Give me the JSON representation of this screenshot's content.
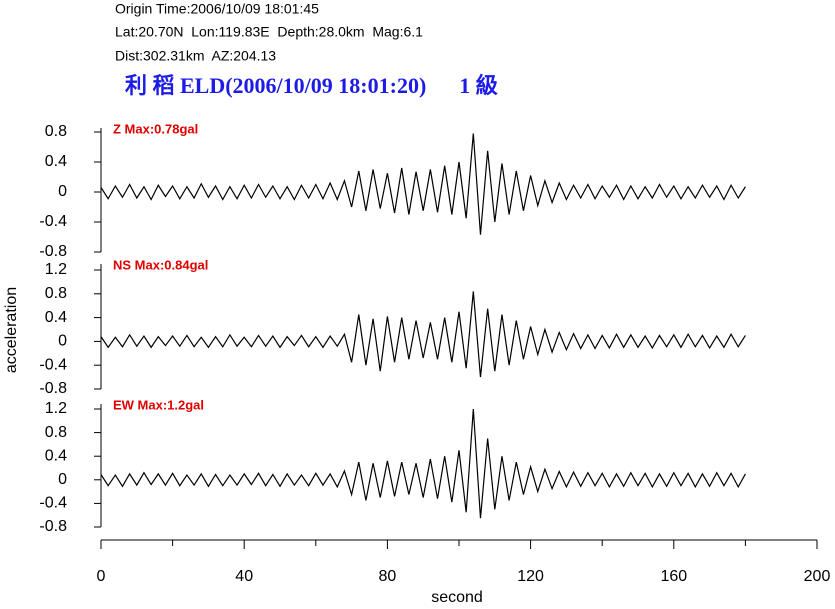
{
  "header": {
    "origin_time": "Origin Time:2006/10/09 18:01:45",
    "location": "Lat:20.70N  Lon:119.83E  Depth:28.0km  Mag:6.1",
    "distance": "Dist:302.31km  AZ:204.13",
    "title": "利 稻 ELD(2006/10/09 18:01:20)      1 級"
  },
  "chart_data": [
    {
      "type": "line",
      "label": "Z Max:0.78gal",
      "color": "#000000",
      "x": [
        0,
        2,
        4,
        6,
        8,
        10,
        12,
        14,
        16,
        18,
        20,
        22,
        24,
        26,
        28,
        30,
        32,
        34,
        36,
        38,
        40,
        42,
        44,
        46,
        48,
        50,
        52,
        54,
        56,
        58,
        60,
        62,
        64,
        66,
        68,
        70,
        72,
        74,
        76,
        78,
        80,
        82,
        84,
        86,
        88,
        90,
        92,
        94,
        96,
        98,
        100,
        102,
        104,
        106,
        108,
        110,
        112,
        114,
        116,
        118,
        120,
        122,
        124,
        126,
        128,
        130,
        132,
        134,
        136,
        138,
        140,
        142,
        144,
        146,
        148,
        150,
        152,
        154,
        156,
        158,
        160,
        162,
        164,
        166,
        168,
        170,
        172,
        174,
        176,
        178,
        180
      ],
      "values": [
        0.06,
        -0.09,
        0.08,
        -0.07,
        0.1,
        -0.08,
        0.07,
        -0.1,
        0.09,
        -0.06,
        0.08,
        -0.09,
        0.07,
        -0.08,
        0.11,
        -0.07,
        0.08,
        -0.1,
        0.07,
        -0.09,
        0.09,
        -0.08,
        0.1,
        -0.07,
        0.08,
        -0.09,
        0.07,
        -0.1,
        0.09,
        -0.08,
        0.1,
        -0.09,
        0.12,
        -0.1,
        0.15,
        -0.2,
        0.28,
        -0.25,
        0.3,
        -0.22,
        0.25,
        -0.28,
        0.32,
        -0.3,
        0.27,
        -0.25,
        0.3,
        -0.27,
        0.35,
        -0.3,
        0.4,
        -0.35,
        0.78,
        -0.57,
        0.55,
        -0.4,
        0.38,
        -0.3,
        0.28,
        -0.25,
        0.22,
        -0.18,
        0.15,
        -0.14,
        0.12,
        -0.1,
        0.09,
        -0.08,
        0.1,
        -0.09,
        0.08,
        -0.07,
        0.09,
        -0.1,
        0.08,
        -0.09,
        0.07,
        -0.08,
        0.1,
        -0.07,
        0.08,
        -0.09,
        0.07,
        -0.08,
        0.09,
        -0.07,
        0.08,
        -0.1,
        0.09,
        -0.08,
        0.07
      ],
      "xlim": [
        0,
        200
      ],
      "ylim": [
        -0.8,
        0.8
      ],
      "yticks": [
        -0.8,
        -0.4,
        0,
        0.4,
        0.8
      ]
    },
    {
      "type": "line",
      "label": "NS Max:0.84gal",
      "color": "#000000",
      "ylabel": "acceleration",
      "x": [
        0,
        2,
        4,
        6,
        8,
        10,
        12,
        14,
        16,
        18,
        20,
        22,
        24,
        26,
        28,
        30,
        32,
        34,
        36,
        38,
        40,
        42,
        44,
        46,
        48,
        50,
        52,
        54,
        56,
        58,
        60,
        62,
        64,
        66,
        68,
        70,
        72,
        74,
        76,
        78,
        80,
        82,
        84,
        86,
        88,
        90,
        92,
        94,
        96,
        98,
        100,
        102,
        104,
        106,
        108,
        110,
        112,
        114,
        116,
        118,
        120,
        122,
        124,
        126,
        128,
        130,
        132,
        134,
        136,
        138,
        140,
        142,
        144,
        146,
        148,
        150,
        152,
        154,
        156,
        158,
        160,
        162,
        164,
        166,
        168,
        170,
        172,
        174,
        176,
        178,
        180
      ],
      "values": [
        0.08,
        -0.1,
        0.07,
        -0.09,
        0.11,
        -0.08,
        0.09,
        -0.1,
        0.08,
        -0.07,
        0.09,
        -0.08,
        0.1,
        -0.09,
        0.07,
        -0.1,
        0.08,
        -0.09,
        0.11,
        -0.08,
        0.07,
        -0.09,
        0.1,
        -0.08,
        0.09,
        -0.1,
        0.08,
        -0.07,
        0.1,
        -0.09,
        0.08,
        -0.1,
        0.09,
        -0.08,
        0.12,
        -0.35,
        0.45,
        -0.4,
        0.38,
        -0.5,
        0.42,
        -0.35,
        0.4,
        -0.3,
        0.35,
        -0.28,
        0.32,
        -0.3,
        0.4,
        -0.35,
        0.5,
        -0.45,
        0.84,
        -0.6,
        0.55,
        -0.5,
        0.45,
        -0.4,
        0.35,
        -0.3,
        0.25,
        -0.22,
        0.2,
        -0.18,
        0.15,
        -0.14,
        0.13,
        -0.12,
        0.11,
        -0.12,
        0.1,
        -0.11,
        0.12,
        -0.1,
        0.11,
        -0.1,
        0.09,
        -0.11,
        0.1,
        -0.09,
        0.11,
        -0.1,
        0.12,
        -0.09,
        0.1,
        -0.11,
        0.09,
        -0.1,
        0.12,
        -0.09,
        0.1
      ],
      "xlim": [
        0,
        200
      ],
      "ylim": [
        -0.8,
        1.2
      ],
      "yticks": [
        -0.8,
        -0.4,
        0,
        0.4,
        0.8,
        1.2
      ]
    },
    {
      "type": "line",
      "label": "EW Max:1.2gal",
      "color": "#000000",
      "xlabel": "second",
      "x": [
        0,
        2,
        4,
        6,
        8,
        10,
        12,
        14,
        16,
        18,
        20,
        22,
        24,
        26,
        28,
        30,
        32,
        34,
        36,
        38,
        40,
        42,
        44,
        46,
        48,
        50,
        52,
        54,
        56,
        58,
        60,
        62,
        64,
        66,
        68,
        70,
        72,
        74,
        76,
        78,
        80,
        82,
        84,
        86,
        88,
        90,
        92,
        94,
        96,
        98,
        100,
        102,
        104,
        106,
        108,
        110,
        112,
        114,
        116,
        118,
        120,
        122,
        124,
        126,
        128,
        130,
        132,
        134,
        136,
        138,
        140,
        142,
        144,
        146,
        148,
        150,
        152,
        154,
        156,
        158,
        160,
        162,
        164,
        166,
        168,
        170,
        172,
        174,
        176,
        178,
        180
      ],
      "values": [
        0.09,
        -0.1,
        0.08,
        -0.11,
        0.1,
        -0.09,
        0.12,
        -0.08,
        0.1,
        -0.09,
        0.11,
        -0.1,
        0.08,
        -0.09,
        0.1,
        -0.11,
        0.09,
        -0.1,
        0.08,
        -0.09,
        0.1,
        -0.08,
        0.11,
        -0.1,
        0.09,
        -0.11,
        0.1,
        -0.09,
        0.08,
        -0.1,
        0.11,
        -0.09,
        0.1,
        -0.12,
        0.15,
        -0.25,
        0.3,
        -0.35,
        0.28,
        -0.3,
        0.32,
        -0.28,
        0.3,
        -0.25,
        0.28,
        -0.3,
        0.35,
        -0.32,
        0.4,
        -0.38,
        0.5,
        -0.55,
        1.2,
        -0.65,
        0.7,
        -0.5,
        0.4,
        -0.35,
        0.3,
        -0.25,
        0.22,
        -0.2,
        0.18,
        -0.15,
        0.14,
        -0.12,
        0.13,
        -0.11,
        0.12,
        -0.1,
        0.11,
        -0.12,
        0.1,
        -0.11,
        0.12,
        -0.1,
        0.11,
        -0.12,
        0.1,
        -0.11,
        0.12,
        -0.1,
        0.11,
        -0.12,
        0.1,
        -0.11,
        0.12,
        -0.1,
        0.11,
        -0.12,
        0.1
      ],
      "xlim": [
        0,
        200
      ],
      "ylim": [
        -0.8,
        1.2
      ],
      "yticks": [
        -0.8,
        -0.4,
        0,
        0.4,
        0.8,
        1.2
      ],
      "xticks": [
        0,
        40,
        80,
        120,
        160,
        200
      ]
    }
  ]
}
